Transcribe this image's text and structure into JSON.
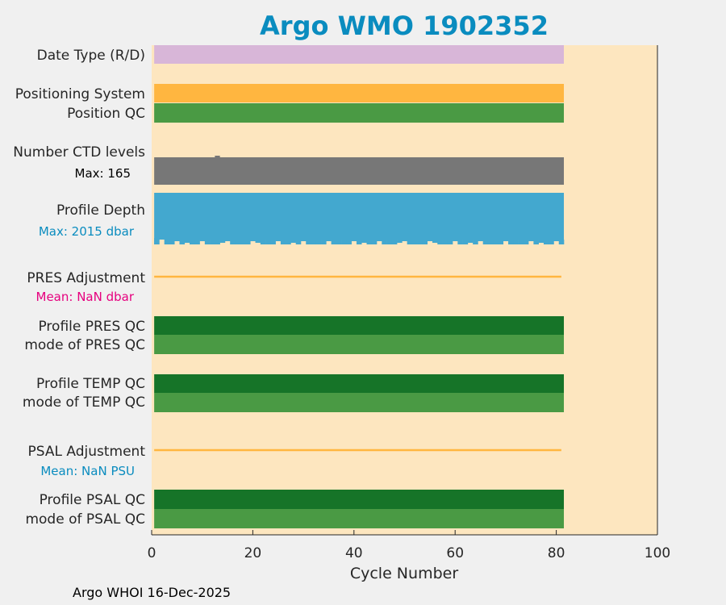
{
  "title": "Argo WMO 1902352",
  "footer": "Argo WHOI 16-Dec-2025",
  "chart_data": {
    "type": "bar",
    "xlabel": "Cycle Number",
    "xlim": [
      0,
      100
    ],
    "xticks": [
      0,
      20,
      40,
      60,
      80,
      100
    ],
    "last_cycle": 81,
    "background": "#fde6bf",
    "rows": [
      {
        "label": "Date Type (R/D)",
        "color": "#d8b6d8"
      },
      {
        "label": "Positioning System",
        "color": "#ffb640"
      },
      {
        "label": "Position QC",
        "color": "#4a9a44"
      },
      {
        "label": "Number CTD levels",
        "color": "#777777"
      },
      {
        "label": "Profile Depth",
        "color": "#43a8cf"
      },
      {
        "label": "PRES Adjustment",
        "color": "#ffb640"
      },
      {
        "label": "Profile PRES QC",
        "color": "#167428"
      },
      {
        "label": "mode of PRES QC",
        "color": "#4a9a44"
      },
      {
        "label": "Profile TEMP QC",
        "color": "#167428"
      },
      {
        "label": "mode of TEMP QC",
        "color": "#4a9a44"
      },
      {
        "label": "PSAL Adjustment",
        "color": "#ffb640"
      },
      {
        "label": "Profile PSAL QC",
        "color": "#167428"
      },
      {
        "label": "mode of PSAL QC",
        "color": "#4a9a44"
      }
    ],
    "annotations": {
      "ctd_max": {
        "text": "Max: 165",
        "color": "#000000"
      },
      "depth_max": {
        "text": "Max: 2015 dbar",
        "color": "#0a8cbf"
      },
      "pres_mean": {
        "text": "Mean:  NaN dbar",
        "color": "#e6007e"
      },
      "psal_mean": {
        "text": "Mean:  NaN PSU",
        "color": "#0a8cbf"
      }
    }
  }
}
